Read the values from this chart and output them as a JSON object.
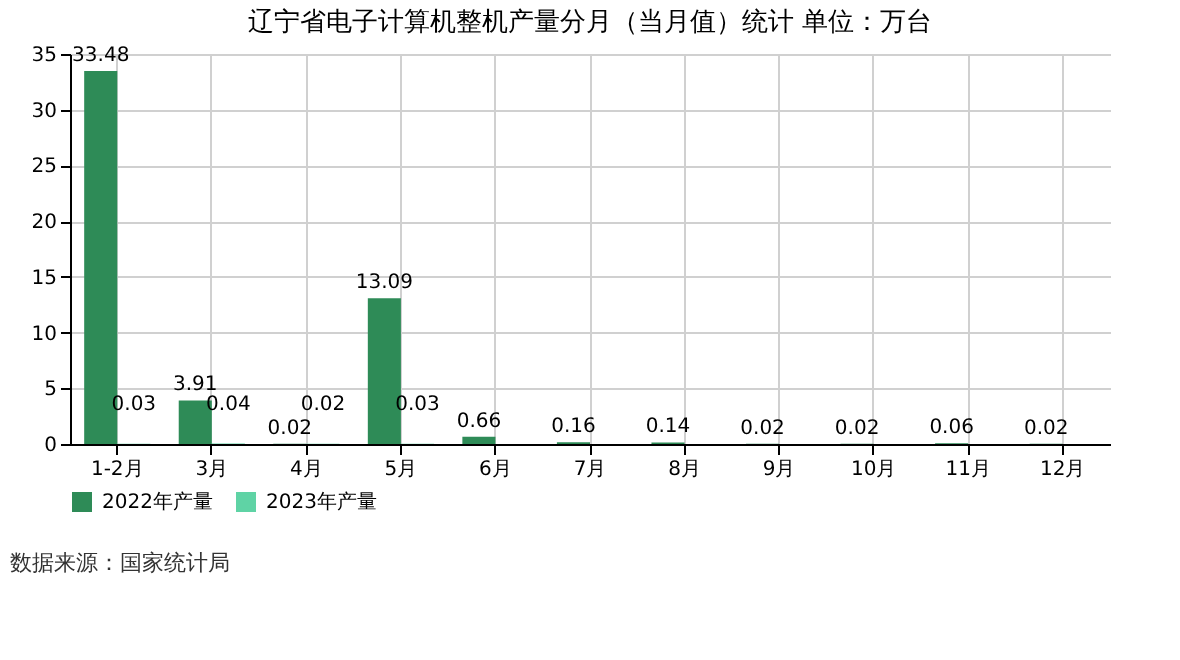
{
  "chart_data": {
    "type": "bar",
    "title": "辽宁省电子计算机整机产量分月（当月值）统计  单位：万台",
    "categories": [
      "1-2月",
      "3月",
      "4月",
      "5月",
      "6月",
      "7月",
      "8月",
      "9月",
      "10月",
      "11月",
      "12月"
    ],
    "series": [
      {
        "name": "2022年产量",
        "color": "#2e8b57",
        "values": [
          33.48,
          3.91,
          0.02,
          13.09,
          0.66,
          0.16,
          0.14,
          0.02,
          0.02,
          0.06,
          0.02
        ]
      },
      {
        "name": "2023年产量",
        "color": "#5fd3a5",
        "values": [
          0.03,
          0.04,
          0.02,
          0.03,
          null,
          null,
          null,
          null,
          null,
          null,
          null
        ]
      }
    ],
    "ylim": [
      0,
      35
    ],
    "yticks": [
      0,
      5,
      10,
      15,
      20,
      25,
      30,
      35
    ],
    "grid": true,
    "legend": "bottom",
    "data_labels": true,
    "annotations": [
      "数据来源：国家统计局"
    ]
  }
}
